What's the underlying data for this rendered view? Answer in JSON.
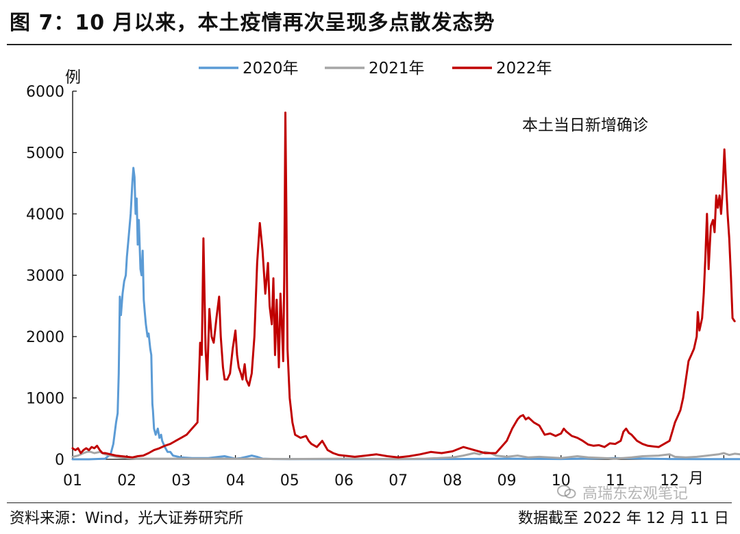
{
  "header": {
    "title": "图 7：10 月以来，本土疫情再次呈现多点散发态势"
  },
  "footer": {
    "source": "资料来源：Wind，光大证券研究所",
    "cutoff": "数据截至 2022 年 12 月 11 日",
    "watermark": "高瑞东宏观笔记"
  },
  "chart_data": {
    "type": "line",
    "ylabel": "例",
    "xunit": "月",
    "annotation": "本土当日新增确诊",
    "ylim": [
      0,
      6000
    ],
    "yticks": [
      "6000",
      "5000",
      "4000",
      "3000",
      "2000",
      "1000",
      "0"
    ],
    "xticks": [
      "01",
      "02",
      "03",
      "04",
      "05",
      "06",
      "07",
      "08",
      "09",
      "10",
      "11",
      "12"
    ],
    "legend_position": "top",
    "series": [
      {
        "name": "2020年",
        "color": "#5b9bd5",
        "points": [
          [
            0.0,
            0
          ],
          [
            0.3,
            0
          ],
          [
            0.6,
            10
          ],
          [
            0.7,
            80
          ],
          [
            0.75,
            250
          ],
          [
            0.8,
            600
          ],
          [
            0.83,
            750
          ],
          [
            0.85,
            1400
          ],
          [
            0.87,
            2650
          ],
          [
            0.89,
            2350
          ],
          [
            0.92,
            2700
          ],
          [
            0.95,
            2900
          ],
          [
            0.98,
            3000
          ],
          [
            1.0,
            3300
          ],
          [
            1.03,
            3600
          ],
          [
            1.07,
            4000
          ],
          [
            1.1,
            4500
          ],
          [
            1.12,
            4750
          ],
          [
            1.14,
            4600
          ],
          [
            1.16,
            4000
          ],
          [
            1.18,
            4250
          ],
          [
            1.2,
            3500
          ],
          [
            1.22,
            3900
          ],
          [
            1.25,
            3100
          ],
          [
            1.27,
            3000
          ],
          [
            1.29,
            3400
          ],
          [
            1.31,
            2600
          ],
          [
            1.33,
            2400
          ],
          [
            1.35,
            2200
          ],
          [
            1.38,
            2000
          ],
          [
            1.4,
            2050
          ],
          [
            1.43,
            1800
          ],
          [
            1.45,
            1700
          ],
          [
            1.47,
            900
          ],
          [
            1.48,
            800
          ],
          [
            1.5,
            500
          ],
          [
            1.53,
            400
          ],
          [
            1.57,
            500
          ],
          [
            1.6,
            350
          ],
          [
            1.63,
            400
          ],
          [
            1.65,
            300
          ],
          [
            1.7,
            200
          ],
          [
            1.75,
            120
          ],
          [
            1.8,
            120
          ],
          [
            1.85,
            60
          ],
          [
            2.0,
            30
          ],
          [
            2.2,
            20
          ],
          [
            2.5,
            20
          ],
          [
            2.7,
            40
          ],
          [
            2.8,
            50
          ],
          [
            2.9,
            30
          ],
          [
            3.0,
            10
          ],
          [
            3.1,
            20
          ],
          [
            3.2,
            40
          ],
          [
            3.3,
            60
          ],
          [
            3.4,
            40
          ],
          [
            3.5,
            10
          ],
          [
            3.7,
            5
          ],
          [
            4.0,
            2
          ],
          [
            5.0,
            3
          ],
          [
            6.0,
            2
          ],
          [
            7.0,
            5
          ],
          [
            8.0,
            10
          ],
          [
            9.0,
            5
          ],
          [
            10.0,
            20
          ],
          [
            11.0,
            5
          ],
          [
            12.0,
            2
          ],
          [
            12.6,
            2
          ]
        ]
      },
      {
        "name": "2021年",
        "color": "#a6a6a6",
        "points": [
          [
            0.0,
            40
          ],
          [
            0.1,
            60
          ],
          [
            0.2,
            100
          ],
          [
            0.3,
            130
          ],
          [
            0.4,
            100
          ],
          [
            0.5,
            120
          ],
          [
            0.6,
            80
          ],
          [
            0.7,
            60
          ],
          [
            0.8,
            40
          ],
          [
            1.0,
            20
          ],
          [
            1.2,
            10
          ],
          [
            1.5,
            10
          ],
          [
            2.0,
            10
          ],
          [
            3.0,
            10
          ],
          [
            4.0,
            5
          ],
          [
            5.0,
            10
          ],
          [
            6.0,
            5
          ],
          [
            6.5,
            10
          ],
          [
            7.0,
            30
          ],
          [
            7.2,
            60
          ],
          [
            7.4,
            100
          ],
          [
            7.5,
            80
          ],
          [
            7.6,
            120
          ],
          [
            7.7,
            100
          ],
          [
            7.8,
            60
          ],
          [
            7.9,
            50
          ],
          [
            8.0,
            40
          ],
          [
            8.2,
            60
          ],
          [
            8.4,
            30
          ],
          [
            8.6,
            40
          ],
          [
            9.0,
            20
          ],
          [
            9.3,
            50
          ],
          [
            9.5,
            30
          ],
          [
            9.8,
            20
          ],
          [
            10.0,
            10
          ],
          [
            10.3,
            30
          ],
          [
            10.5,
            50
          ],
          [
            10.8,
            60
          ],
          [
            11.0,
            80
          ],
          [
            11.1,
            40
          ],
          [
            11.3,
            30
          ],
          [
            11.5,
            40
          ],
          [
            11.7,
            60
          ],
          [
            11.9,
            80
          ],
          [
            12.0,
            100
          ],
          [
            12.1,
            70
          ],
          [
            12.2,
            90
          ],
          [
            12.3,
            80
          ],
          [
            12.4,
            100
          ],
          [
            12.45,
            150
          ],
          [
            12.5,
            200
          ],
          [
            12.6,
            210
          ]
        ]
      },
      {
        "name": "2022年",
        "color": "#c00000",
        "points": [
          [
            0.0,
            180
          ],
          [
            0.05,
            150
          ],
          [
            0.1,
            180
          ],
          [
            0.15,
            100
          ],
          [
            0.2,
            150
          ],
          [
            0.25,
            180
          ],
          [
            0.3,
            150
          ],
          [
            0.35,
            200
          ],
          [
            0.4,
            180
          ],
          [
            0.45,
            220
          ],
          [
            0.5,
            150
          ],
          [
            0.55,
            100
          ],
          [
            0.6,
            100
          ],
          [
            0.7,
            80
          ],
          [
            0.8,
            60
          ],
          [
            0.9,
            50
          ],
          [
            1.0,
            40
          ],
          [
            1.1,
            30
          ],
          [
            1.2,
            50
          ],
          [
            1.3,
            60
          ],
          [
            1.4,
            100
          ],
          [
            1.5,
            150
          ],
          [
            1.6,
            180
          ],
          [
            1.7,
            220
          ],
          [
            1.8,
            250
          ],
          [
            1.9,
            300
          ],
          [
            2.0,
            350
          ],
          [
            2.1,
            400
          ],
          [
            2.2,
            500
          ],
          [
            2.3,
            600
          ],
          [
            2.35,
            1900
          ],
          [
            2.38,
            1700
          ],
          [
            2.41,
            3600
          ],
          [
            2.45,
            1800
          ],
          [
            2.48,
            1300
          ],
          [
            2.52,
            2450
          ],
          [
            2.56,
            2000
          ],
          [
            2.6,
            1900
          ],
          [
            2.65,
            2300
          ],
          [
            2.7,
            2650
          ],
          [
            2.73,
            2000
          ],
          [
            2.77,
            1500
          ],
          [
            2.8,
            1300
          ],
          [
            2.85,
            1300
          ],
          [
            2.9,
            1400
          ],
          [
            2.95,
            1800
          ],
          [
            3.0,
            2100
          ],
          [
            3.03,
            1700
          ],
          [
            3.06,
            1500
          ],
          [
            3.1,
            1400
          ],
          [
            3.13,
            1300
          ],
          [
            3.17,
            1550
          ],
          [
            3.2,
            1300
          ],
          [
            3.25,
            1200
          ],
          [
            3.3,
            1400
          ],
          [
            3.35,
            2000
          ],
          [
            3.4,
            3200
          ],
          [
            3.45,
            3850
          ],
          [
            3.5,
            3400
          ],
          [
            3.55,
            2700
          ],
          [
            3.6,
            3200
          ],
          [
            3.63,
            2500
          ],
          [
            3.67,
            2200
          ],
          [
            3.7,
            2950
          ],
          [
            3.73,
            1700
          ],
          [
            3.76,
            2600
          ],
          [
            3.8,
            1500
          ],
          [
            3.83,
            2700
          ],
          [
            3.86,
            2100
          ],
          [
            3.88,
            1600
          ],
          [
            3.9,
            3000
          ],
          [
            3.92,
            5650
          ],
          [
            3.94,
            4000
          ],
          [
            3.96,
            1800
          ],
          [
            4.0,
            1000
          ],
          [
            4.05,
            600
          ],
          [
            4.1,
            400
          ],
          [
            4.2,
            350
          ],
          [
            4.3,
            380
          ],
          [
            4.35,
            300
          ],
          [
            4.4,
            250
          ],
          [
            4.5,
            200
          ],
          [
            4.6,
            300
          ],
          [
            4.7,
            150
          ],
          [
            4.8,
            100
          ],
          [
            4.9,
            70
          ],
          [
            5.0,
            60
          ],
          [
            5.2,
            40
          ],
          [
            5.4,
            60
          ],
          [
            5.6,
            80
          ],
          [
            5.8,
            50
          ],
          [
            6.0,
            30
          ],
          [
            6.2,
            50
          ],
          [
            6.4,
            80
          ],
          [
            6.6,
            120
          ],
          [
            6.8,
            100
          ],
          [
            7.0,
            130
          ],
          [
            7.2,
            200
          ],
          [
            7.4,
            150
          ],
          [
            7.6,
            100
          ],
          [
            7.8,
            100
          ],
          [
            8.0,
            300
          ],
          [
            8.1,
            500
          ],
          [
            8.2,
            650
          ],
          [
            8.25,
            700
          ],
          [
            8.3,
            720
          ],
          [
            8.35,
            650
          ],
          [
            8.4,
            680
          ],
          [
            8.5,
            600
          ],
          [
            8.6,
            550
          ],
          [
            8.7,
            400
          ],
          [
            8.8,
            420
          ],
          [
            8.9,
            380
          ],
          [
            9.0,
            420
          ],
          [
            9.05,
            500
          ],
          [
            9.1,
            450
          ],
          [
            9.2,
            380
          ],
          [
            9.3,
            350
          ],
          [
            9.4,
            300
          ],
          [
            9.5,
            240
          ],
          [
            9.6,
            220
          ],
          [
            9.7,
            230
          ],
          [
            9.8,
            200
          ],
          [
            9.9,
            260
          ],
          [
            10.0,
            250
          ],
          [
            10.1,
            300
          ],
          [
            10.15,
            450
          ],
          [
            10.2,
            500
          ],
          [
            10.25,
            430
          ],
          [
            10.3,
            400
          ],
          [
            10.4,
            300
          ],
          [
            10.5,
            250
          ],
          [
            10.6,
            220
          ],
          [
            10.7,
            210
          ],
          [
            10.8,
            200
          ],
          [
            10.9,
            250
          ],
          [
            11.0,
            300
          ],
          [
            11.05,
            450
          ],
          [
            11.1,
            600
          ],
          [
            11.15,
            700
          ],
          [
            11.2,
            800
          ],
          [
            11.25,
            1000
          ],
          [
            11.3,
            1300
          ],
          [
            11.35,
            1600
          ],
          [
            11.4,
            1700
          ],
          [
            11.45,
            1800
          ],
          [
            11.5,
            2000
          ],
          [
            11.52,
            2400
          ],
          [
            11.55,
            2100
          ],
          [
            11.6,
            2300
          ],
          [
            11.63,
            2700
          ],
          [
            11.66,
            3300
          ],
          [
            11.69,
            4000
          ],
          [
            11.72,
            3100
          ],
          [
            11.76,
            3800
          ],
          [
            11.8,
            3900
          ],
          [
            11.83,
            3700
          ],
          [
            11.86,
            4300
          ],
          [
            11.89,
            4100
          ],
          [
            11.92,
            4300
          ],
          [
            11.95,
            4000
          ],
          [
            11.98,
            4400
          ],
          [
            12.01,
            5050
          ],
          [
            12.04,
            4500
          ],
          [
            12.07,
            4000
          ],
          [
            12.1,
            3600
          ],
          [
            12.13,
            3000
          ],
          [
            12.16,
            2300
          ],
          [
            12.2,
            2250
          ]
        ]
      }
    ]
  }
}
